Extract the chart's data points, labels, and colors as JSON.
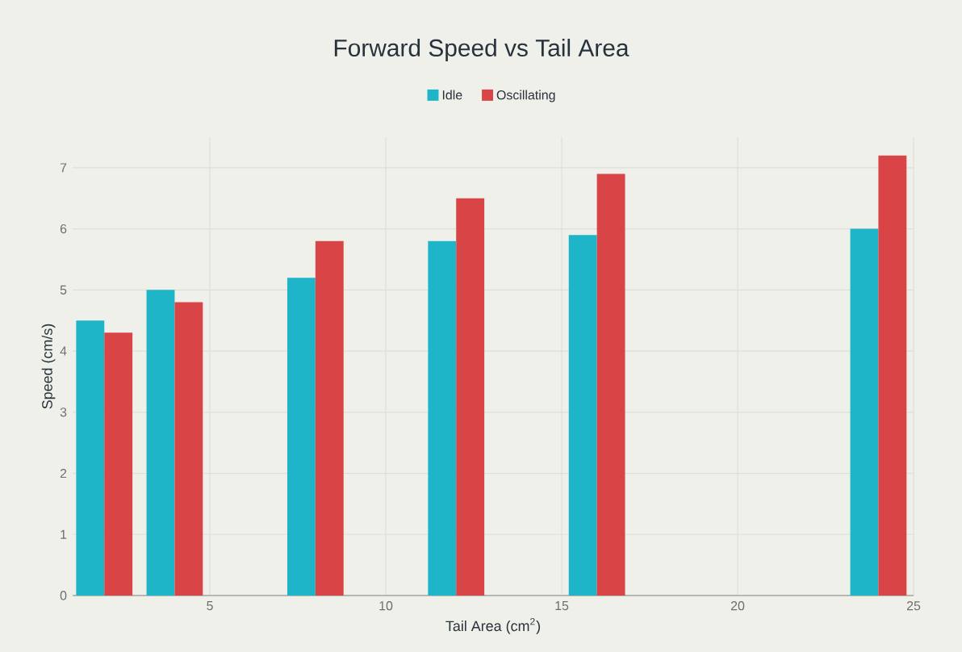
{
  "chart_data": {
    "type": "bar",
    "title": "Forward Speed vs Tail Area",
    "xlabel": "Tail Area (cm$^{2}$)",
    "ylabel": "Speed (cm/s)",
    "x": [
      2,
      4,
      8,
      12,
      16,
      24
    ],
    "series": [
      {
        "name": "Idle",
        "color": "#1fb5c9",
        "values": [
          4.5,
          5.0,
          5.2,
          5.8,
          5.9,
          6.0
        ]
      },
      {
        "name": "Oscillating",
        "color": "#d94447",
        "values": [
          4.3,
          4.8,
          5.8,
          6.5,
          6.9,
          7.2
        ]
      }
    ],
    "xlim": [
      1.1,
      25
    ],
    "xticks": [
      5,
      10,
      15,
      20,
      25
    ],
    "ylim": [
      0,
      7.5
    ],
    "yticks": [
      0,
      1,
      2,
      3,
      4,
      5,
      6,
      7
    ],
    "grid": true,
    "legend": "top"
  }
}
